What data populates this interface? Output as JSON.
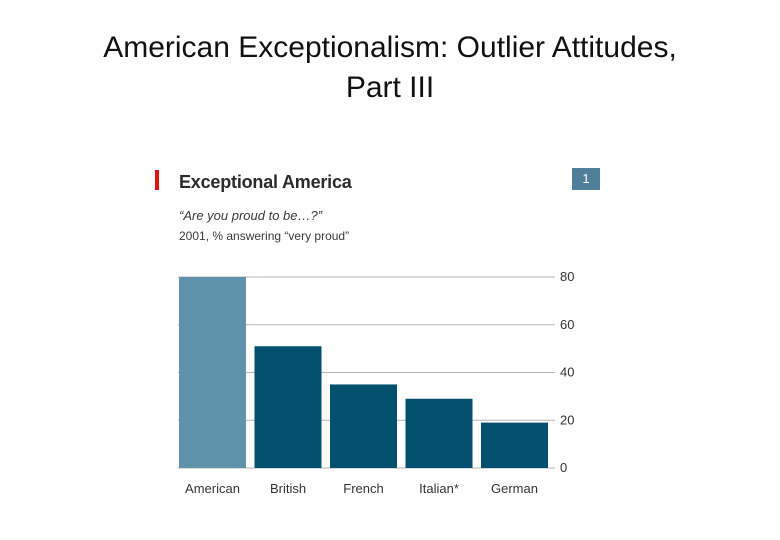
{
  "slide": {
    "title_line1": "American Exceptionalism: Outlier Attitudes,",
    "title_line2": "Part III"
  },
  "chart_data": {
    "type": "bar",
    "title": "Exceptional America",
    "subtitle": "“Are you proud to be…?”",
    "note": "2001, % answering “very proud”",
    "number_badge": "1",
    "categories": [
      "American",
      "British",
      "French",
      "Italian*",
      "German"
    ],
    "values": [
      80,
      51,
      35,
      29,
      19
    ],
    "yticks": [
      0,
      20,
      40,
      60,
      80
    ],
    "ylim": [
      0,
      80
    ],
    "grid": true,
    "y_axis_side": "right",
    "colors": {
      "highlight": "#5f92ab",
      "bar": "#02506e",
      "accent": "#e3120b",
      "badge": "#4f7f99",
      "grid": "#b7b7b7"
    }
  }
}
